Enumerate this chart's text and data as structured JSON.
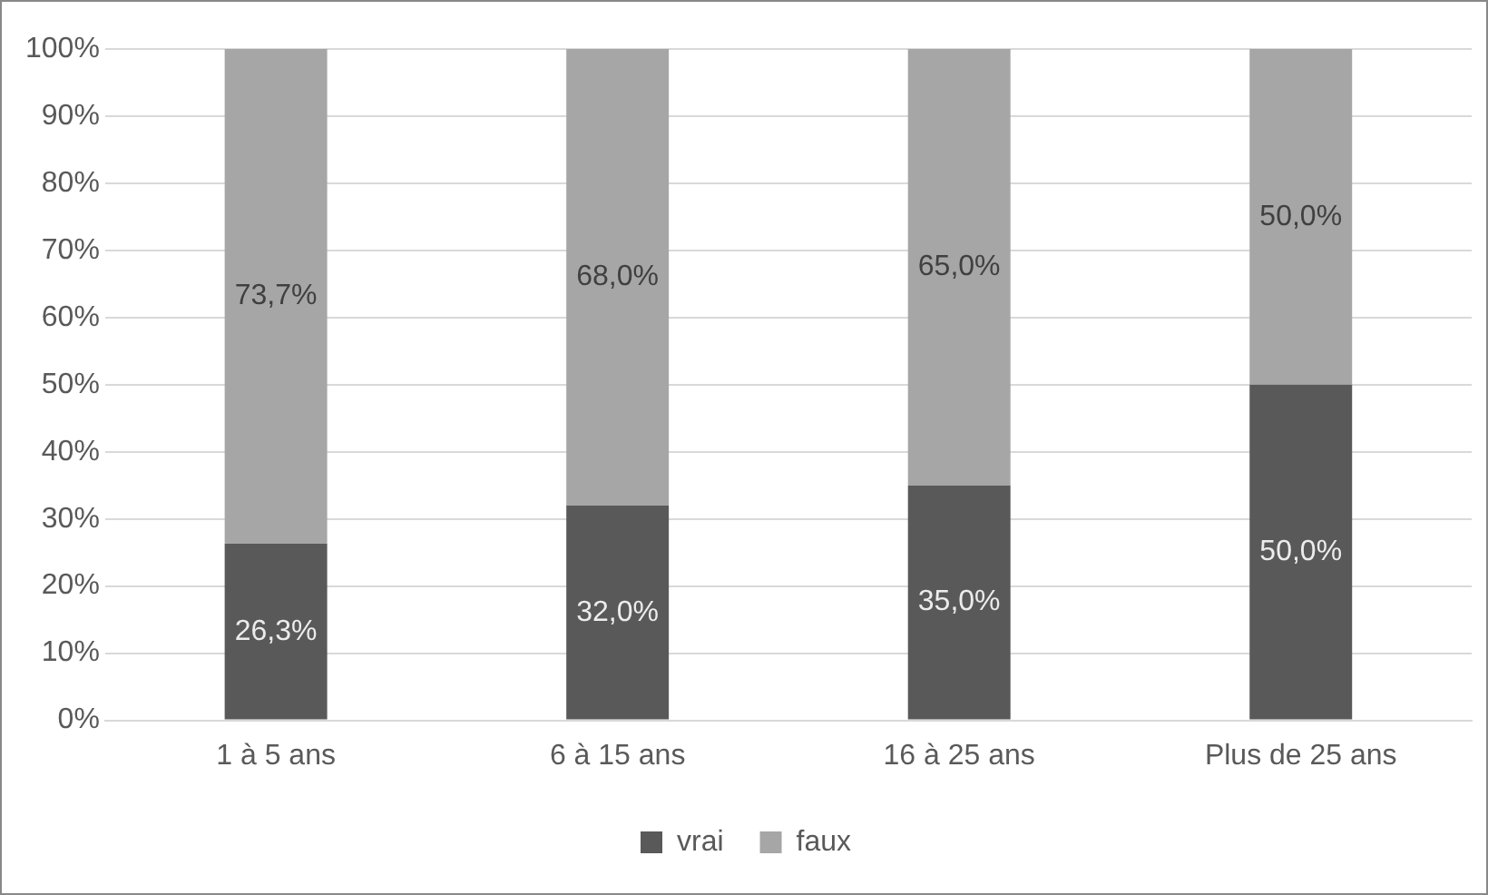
{
  "chart_data": {
    "type": "bar",
    "stacked": true,
    "categories": [
      "1 à 5 ans",
      "6 à 15 ans",
      "16 à 25 ans",
      "Plus de 25 ans"
    ],
    "series": [
      {
        "name": "vrai",
        "color": "#595959",
        "values": [
          26.3,
          32.0,
          35.0,
          50.0
        ],
        "value_labels": [
          "26,3%",
          "32,0%",
          "35,0%",
          "50,0%"
        ]
      },
      {
        "name": "faux",
        "color": "#a6a6a6",
        "values": [
          73.7,
          68.0,
          65.0,
          50.0
        ],
        "value_labels": [
          "73,7%",
          "68,0%",
          "65,0%",
          "50,0%"
        ]
      }
    ],
    "ylim": [
      0,
      100
    ],
    "yticks": [
      {
        "value": 0,
        "label": "0%"
      },
      {
        "value": 10,
        "label": "10%"
      },
      {
        "value": 20,
        "label": "20%"
      },
      {
        "value": 30,
        "label": "30%"
      },
      {
        "value": 40,
        "label": "40%"
      },
      {
        "value": 50,
        "label": "50%"
      },
      {
        "value": 60,
        "label": "60%"
      },
      {
        "value": 70,
        "label": "70%"
      },
      {
        "value": 80,
        "label": "80%"
      },
      {
        "value": 90,
        "label": "90%"
      },
      {
        "value": 100,
        "label": "100%"
      }
    ],
    "grid": "y",
    "legend": "bottom"
  }
}
